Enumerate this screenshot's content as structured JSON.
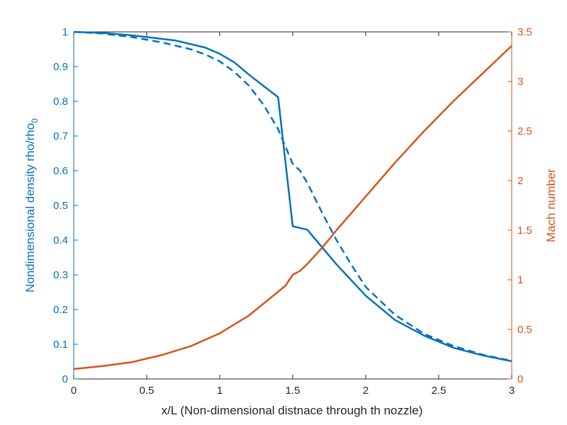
{
  "chart_data": {
    "type": "line",
    "title": "",
    "xlabel": "x/L (Non-dimensional distnace through th nozzle)",
    "ylabel_left": "Nondimensional density rho/rho",
    "ylabel_left_subscript": "0",
    "ylabel_right": "Mach number",
    "xlim": [
      0,
      3
    ],
    "ylim_left": [
      0,
      1
    ],
    "ylim_right": [
      0,
      3.5
    ],
    "grid": false,
    "legend": "none",
    "colors": {
      "left": "#0072BD",
      "right": "#D95319",
      "axis": "#262626"
    },
    "x_ticks": [
      "0",
      "0.5",
      "1",
      "1.5",
      "2",
      "2.5",
      "3"
    ],
    "y_left_ticks": [
      "0",
      "0.1",
      "0.2",
      "0.3",
      "0.4",
      "0.5",
      "0.6",
      "0.7",
      "0.8",
      "0.9",
      "1"
    ],
    "y_right_ticks": [
      "0",
      "0.5",
      "1",
      "1.5",
      "2",
      "2.5",
      "3",
      "3.5"
    ],
    "series": [
      {
        "axis": "left",
        "style": "solid",
        "x": [
          0,
          0.2,
          0.4,
          0.5,
          0.7,
          0.9,
          1.0,
          1.1,
          1.2,
          1.3,
          1.4,
          1.5,
          1.6,
          1.7,
          1.8,
          1.9,
          2.0,
          2.2,
          2.4,
          2.6,
          2.8,
          3.0
        ],
        "y": [
          1.0,
          0.997,
          0.99,
          0.985,
          0.975,
          0.955,
          0.937,
          0.912,
          0.877,
          0.844,
          0.812,
          0.44,
          0.43,
          0.38,
          0.33,
          0.285,
          0.24,
          0.17,
          0.125,
          0.09,
          0.068,
          0.051
        ]
      },
      {
        "axis": "left",
        "style": "dashed",
        "x": [
          0,
          0.2,
          0.4,
          0.6,
          0.8,
          0.9,
          1.0,
          1.1,
          1.2,
          1.3,
          1.4,
          1.5,
          1.55,
          1.6,
          1.7,
          1.8,
          1.9,
          2.0,
          2.2,
          2.4,
          2.6,
          2.8,
          3.0
        ],
        "y": [
          1.0,
          0.995,
          0.985,
          0.97,
          0.95,
          0.935,
          0.915,
          0.885,
          0.845,
          0.79,
          0.72,
          0.62,
          0.6,
          0.565,
          0.48,
          0.4,
          0.33,
          0.265,
          0.185,
          0.13,
          0.095,
          0.07,
          0.052
        ]
      },
      {
        "axis": "right",
        "style": "solid",
        "x": [
          0,
          0.2,
          0.4,
          0.6,
          0.8,
          1.0,
          1.2,
          1.3,
          1.4,
          1.45,
          1.5,
          1.55,
          1.6,
          1.7,
          1.8,
          2.0,
          2.2,
          2.4,
          2.6,
          2.8,
          3.0
        ],
        "y": [
          0.1,
          0.13,
          0.17,
          0.24,
          0.33,
          0.46,
          0.64,
          0.76,
          0.88,
          0.94,
          1.05,
          1.09,
          1.16,
          1.32,
          1.5,
          1.84,
          2.18,
          2.5,
          2.8,
          3.08,
          3.36
        ]
      }
    ]
  }
}
